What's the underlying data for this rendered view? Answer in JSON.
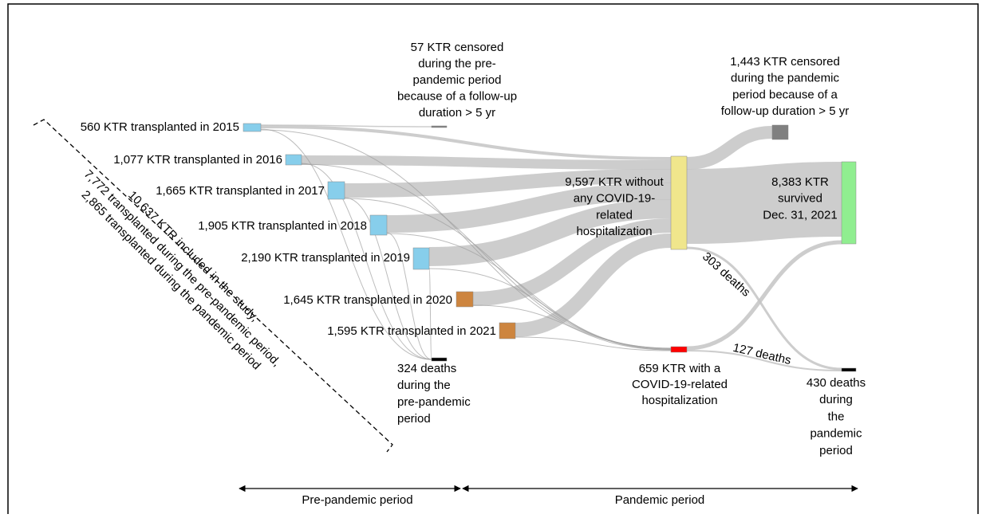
{
  "nodes": [
    {
      "lines": [
        "560 KTR transplanted in 2015"
      ]
    },
    {
      "lines": [
        "1,077 KTR transplanted in 2016"
      ]
    },
    {
      "lines": [
        "1,665 KTR transplanted in 2017"
      ]
    },
    {
      "lines": [
        "1,905 KTR transplanted in 2018"
      ]
    },
    {
      "lines": [
        "2,190 KTR transplanted in 2019"
      ]
    },
    {
      "lines": [
        "1,645 KTR transplanted in 2020"
      ]
    },
    {
      "lines": [
        "1,595 KTR transplanted in 2021"
      ]
    },
    {
      "lines": [
        "57 KTR censored",
        "during the  pre-",
        "pandemic period",
        "because of a follow-up",
        "duration > 5 yr"
      ]
    },
    {
      "lines": [
        "324 deaths",
        "during the",
        "pre-pandemic",
        "period"
      ]
    },
    {
      "lines": [
        "9,597 KTR without",
        "any COVID-19-",
        "related",
        "hospitalization"
      ]
    },
    {
      "lines": [
        "659 KTR with a",
        "COVID-19-related",
        "hospitalization"
      ]
    },
    {
      "lines": [
        "1,443 KTR censored",
        "during the  pandemic",
        "period because of a",
        "follow-up duration > 5 yr"
      ]
    },
    {
      "lines": [
        "8,383 KTR",
        "survived",
        "Dec. 31,  2021"
      ]
    },
    {
      "lines": [
        "430 deaths",
        "during",
        "the",
        "pandemic",
        "period"
      ]
    }
  ],
  "flow_labels": [
    "303 deaths",
    "127 deaths"
  ],
  "cohort": [
    "10,637 KTR included in the study,",
    "7,772 transplanted during the pre-pandemic period,",
    "2,865 transplanted during the pandemic period"
  ],
  "periods": [
    "Pre-pandemic period",
    "Pandemic period"
  ]
}
